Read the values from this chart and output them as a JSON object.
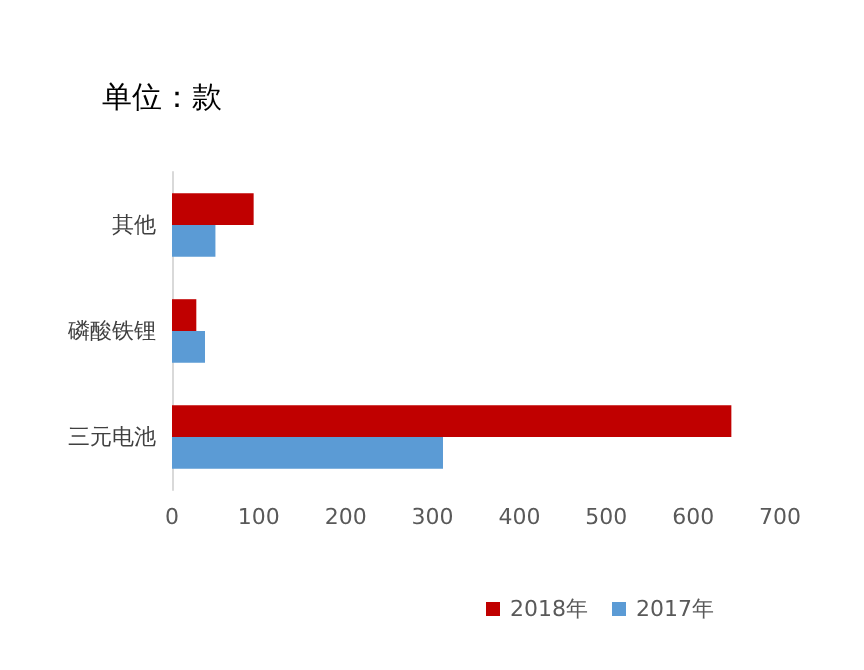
{
  "chart_data": {
    "type": "bar",
    "orientation": "horizontal",
    "title": "单位：款",
    "categories": [
      "其他",
      "磷酸铁锂",
      "三元电池"
    ],
    "series": [
      {
        "name": "2018年",
        "color": "#c00000",
        "values": [
          94,
          28,
          644
        ]
      },
      {
        "name": "2017年",
        "color": "#5b9bd5",
        "values": [
          50,
          38,
          312
        ]
      }
    ],
    "xlim": [
      0,
      700
    ],
    "xticks": [
      0,
      100,
      200,
      300,
      400,
      500,
      600,
      700
    ],
    "grid": false,
    "legend": "bottom"
  }
}
